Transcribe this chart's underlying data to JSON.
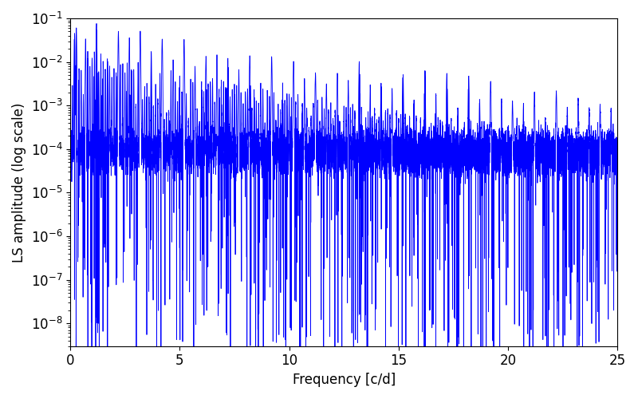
{
  "xlabel": "Frequency [c/d]",
  "ylabel": "LS amplitude (log scale)",
  "color": "#0000ff",
  "xlim": [
    0,
    25
  ],
  "ylim": [
    3e-09,
    0.1
  ],
  "linewidth": 0.6,
  "figsize": [
    8.0,
    5.0
  ],
  "dpi": 100,
  "background_color": "#ffffff",
  "tick_labelsize": 12,
  "label_fontsize": 12
}
